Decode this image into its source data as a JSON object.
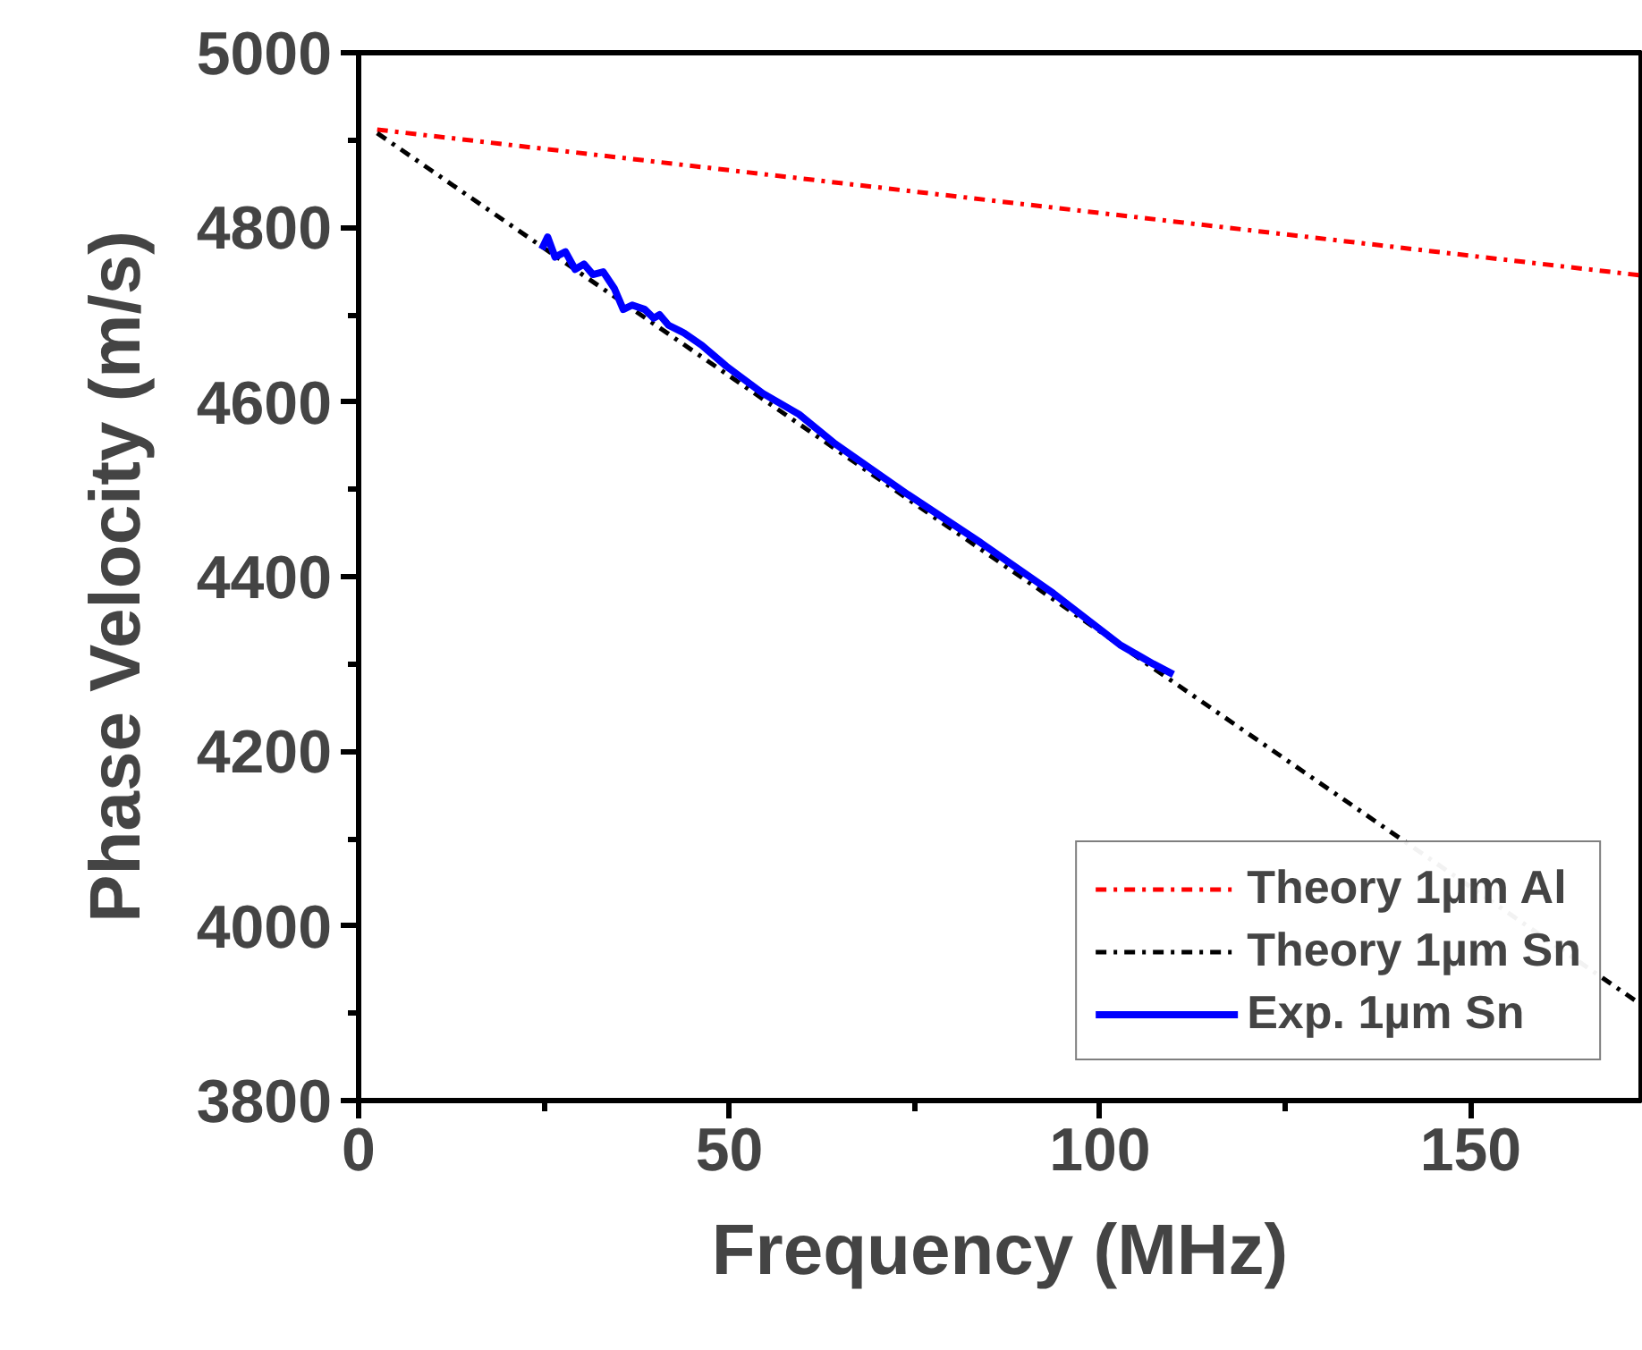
{
  "chart_data": {
    "type": "line",
    "xlabel": "Frequency (MHz)",
    "ylabel": "Phase Velocity (m/s)",
    "xlim": [
      0,
      173
    ],
    "ylim": [
      3800,
      5000
    ],
    "xticks": [
      0,
      {
        "value": 25,
        "label": null
      },
      50,
      {
        "value": 75,
        "label": null
      },
      100,
      {
        "value": 125,
        "label": null
      },
      150
    ],
    "yticks": [
      3800,
      {
        "value": 3900,
        "label": null
      },
      4000,
      {
        "value": 4100,
        "label": null
      },
      4200,
      {
        "value": 4300,
        "label": null
      },
      4400,
      {
        "value": 4500,
        "label": null
      },
      4600,
      {
        "value": 4700,
        "label": null
      },
      4800,
      {
        "value": 4900,
        "label": null
      },
      5000
    ],
    "grid": false,
    "legend": "bottom right",
    "series": [
      {
        "name": "Theory 1µm Al",
        "color": "#ff0000",
        "line_style": "dashdot",
        "x": [
          2.5,
          173
        ],
        "values": [
          4912,
          4745
        ]
      },
      {
        "name": "Theory 1µm Sn",
        "color": "#000000",
        "line_style": "dashdot",
        "x": [
          2.5,
          173
        ],
        "values": [
          4908,
          3910
        ]
      },
      {
        "name": "Exp. 1µm Sn",
        "color": "#0000ff",
        "line_style": "solid",
        "x": [
          24.7,
          25.5,
          26.5,
          27.9,
          29.2,
          30.4,
          31.6,
          33.0,
          34.5,
          35.7,
          36.9,
          38.6,
          39.8,
          40.6,
          41.8,
          43.9,
          46.3,
          49.6,
          54.5,
          59.4,
          64.3,
          74.1,
          83.9,
          93.7,
          102.7,
          107.2,
          109.9
        ],
        "values": [
          4775,
          4789,
          4766,
          4772,
          4752,
          4758,
          4746,
          4749,
          4730,
          4706,
          4711,
          4706,
          4696,
          4700,
          4688,
          4679,
          4665,
          4641,
          4610,
          4586,
          4552,
          4494,
          4439,
          4381,
          4322,
          4300,
          4288
        ]
      }
    ]
  }
}
